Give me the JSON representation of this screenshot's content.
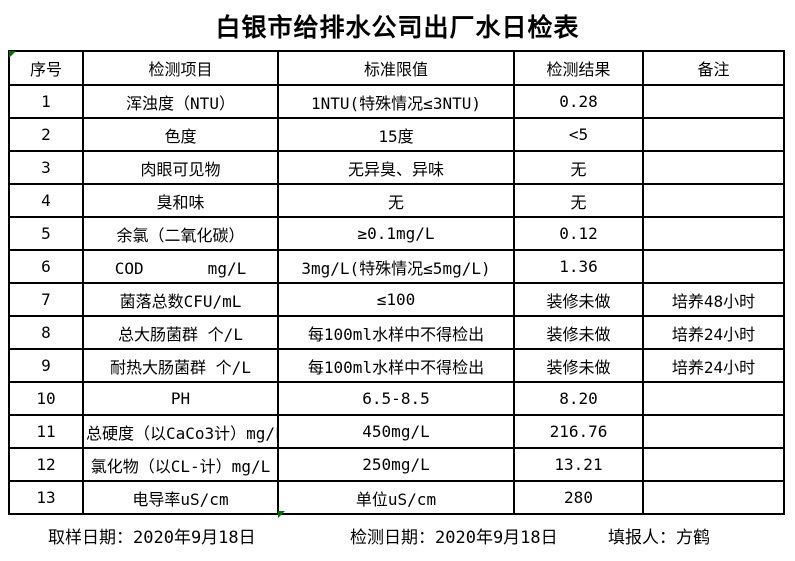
{
  "title": "白银市给排水公司出厂水日检表",
  "table": {
    "headers": [
      "序号",
      "检测项目",
      "标准限值",
      "检测结果",
      "备注"
    ],
    "rows": [
      {
        "no": "1",
        "item": "浑浊度（NTU）",
        "limit": "1NTU(特殊情况≤3NTU)",
        "result": "0.28",
        "note": ""
      },
      {
        "no": "2",
        "item": "色度",
        "limit": "15度",
        "result": "<5",
        "note": ""
      },
      {
        "no": "3",
        "item": "肉眼可见物",
        "limit": "无异臭、异味",
        "result": "无",
        "note": ""
      },
      {
        "no": "4",
        "item": "臭和味",
        "limit": "无",
        "result": "无",
        "note": ""
      },
      {
        "no": "5",
        "item": "余氯（二氧化碳）",
        "limit": "≥0.1mg/L",
        "result": "0.12",
        "note": ""
      },
      {
        "no": "6",
        "item": "COD　　　　mg/L",
        "limit": "3mg/L(特殊情况≤5mg/L)",
        "result": "1.36",
        "note": ""
      },
      {
        "no": "7",
        "item": "菌落总数CFU/mL",
        "limit": "≤100",
        "result": "装修未做",
        "note": "培养48小时"
      },
      {
        "no": "8",
        "item": "总大肠菌群 个/L",
        "limit": "每100ml水样中不得检出",
        "result": "装修未做",
        "note": "培养24小时"
      },
      {
        "no": "9",
        "item": "耐热大肠菌群 个/L",
        "limit": "每100ml水样中不得检出",
        "result": "装修未做",
        "note": "培养24小时"
      },
      {
        "no": "10",
        "item": "PH",
        "limit": "6.5-8.5",
        "result": "8.20",
        "note": ""
      },
      {
        "no": "11",
        "item": "总硬度（以CaCo3计）mg/L",
        "limit": "450mg/L",
        "result": "216.76",
        "note": ""
      },
      {
        "no": "12",
        "item": "氯化物（以CL-计）mg/L",
        "limit": "250mg/L",
        "result": "13.21",
        "note": ""
      },
      {
        "no": "13",
        "item": "电导率uS/cm",
        "limit": "单位uS/cm",
        "result": "280",
        "note": ""
      }
    ]
  },
  "footer": {
    "sampling_date": "取样日期：2020年9月18日",
    "test_date": "检测日期：2020年9月18日",
    "reporter": "填报人：方鹤"
  },
  "colors": {
    "border": "#000000",
    "marker_green": "#007000",
    "background": "#ffffff",
    "text": "#000000"
  }
}
